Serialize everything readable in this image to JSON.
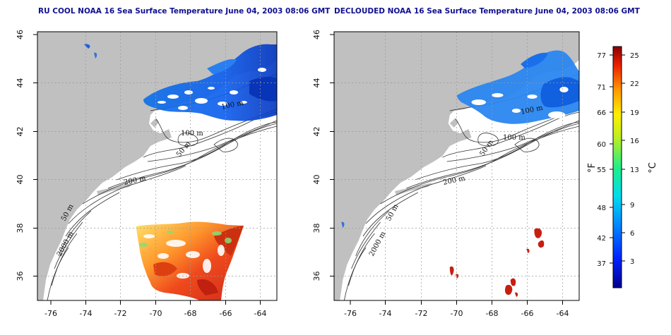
{
  "left_map": {
    "title": "RU COOL NOAA 16 Sea Surface Temperature June 04, 2003 08:06 GMT"
  },
  "right_map": {
    "title": "DECLOUDED NOAA 16 Sea Surface Temperature June 04, 2003 08:06 GMT"
  },
  "axes": {
    "lon_ticks": [
      "-76",
      "-74",
      "-72",
      "-70",
      "-68",
      "-66",
      "-64"
    ],
    "lat_ticks": [
      "36",
      "38",
      "40",
      "42",
      "44",
      "46"
    ]
  },
  "contour_labels": [
    "50 m",
    "100 m",
    "200 m",
    "2000 m"
  ],
  "colorbar": {
    "fahrenheit_label": "°F",
    "celsius_label": "°C",
    "fahrenheit_ticks": [
      "77",
      "71",
      "66",
      "60",
      "55",
      "48",
      "42",
      "37"
    ],
    "celsius_ticks": [
      "25",
      "22",
      "19",
      "16",
      "13",
      "9",
      "6",
      "3"
    ]
  },
  "colors": {
    "land": "#c0c0c0",
    "ocean": "#ffffff",
    "cold": "#1050e0",
    "warm": "#d02010"
  }
}
